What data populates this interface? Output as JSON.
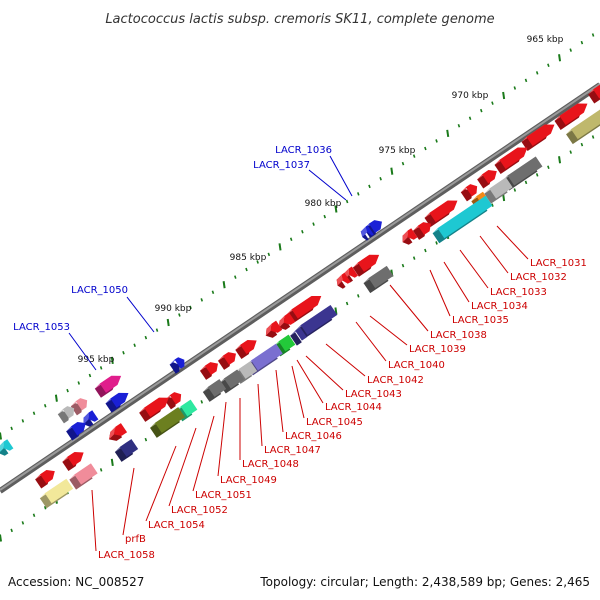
{
  "title": "Lactococcus lactis subsp. cremoris SK11, complete genome",
  "footer": {
    "accession": "Accession: NC_008527",
    "summary": "Topology: circular; Length: 2,438,589 bp; Genes: 2,465"
  },
  "colors": {
    "backbone": "#808080",
    "tick": "#1a7a1a",
    "fwd_label": "#0000cc",
    "rev_label": "#cc0000",
    "red": "#e8141b",
    "blue": "#1a20d6",
    "gray": "#6e6e6e",
    "lightgray": "#b9b9b9",
    "cyan": "#1ec8d2",
    "orange": "#f28a18",
    "olive": "#6c7f20",
    "khaki": "#bfb86c",
    "purple": "#3b3590",
    "lavender": "#7a6fd0",
    "green": "#23c93a",
    "mint": "#2ee8a0",
    "magenta": "#e01e8c",
    "pink": "#f08c9a",
    "paleyellow": "#f2e89a",
    "navy": "#2f2f80"
  },
  "scale_labels": [
    "965 kbp",
    "970 kbp",
    "975 kbp",
    "980 kbp",
    "985 kbp",
    "990 kbp",
    "995 kbp"
  ],
  "forward_labels": [
    "LACR_1036",
    "LACR_1037",
    "LACR_1050",
    "LACR_1053"
  ],
  "reverse_labels": [
    "LACR_1031",
    "LACR_1032",
    "LACR_1033",
    "LACR_1034",
    "LACR_1035",
    "LACR_1038",
    "LACR_1039",
    "LACR_1040",
    "LACR_1042",
    "LACR_1043",
    "LACR_1044",
    "LACR_1045",
    "LACR_1046",
    "LACR_1047",
    "LACR_1048",
    "LACR_1049",
    "LACR_1051",
    "LACR_1052",
    "LACR_1054",
    "prfB",
    "LACR_1058"
  ]
}
